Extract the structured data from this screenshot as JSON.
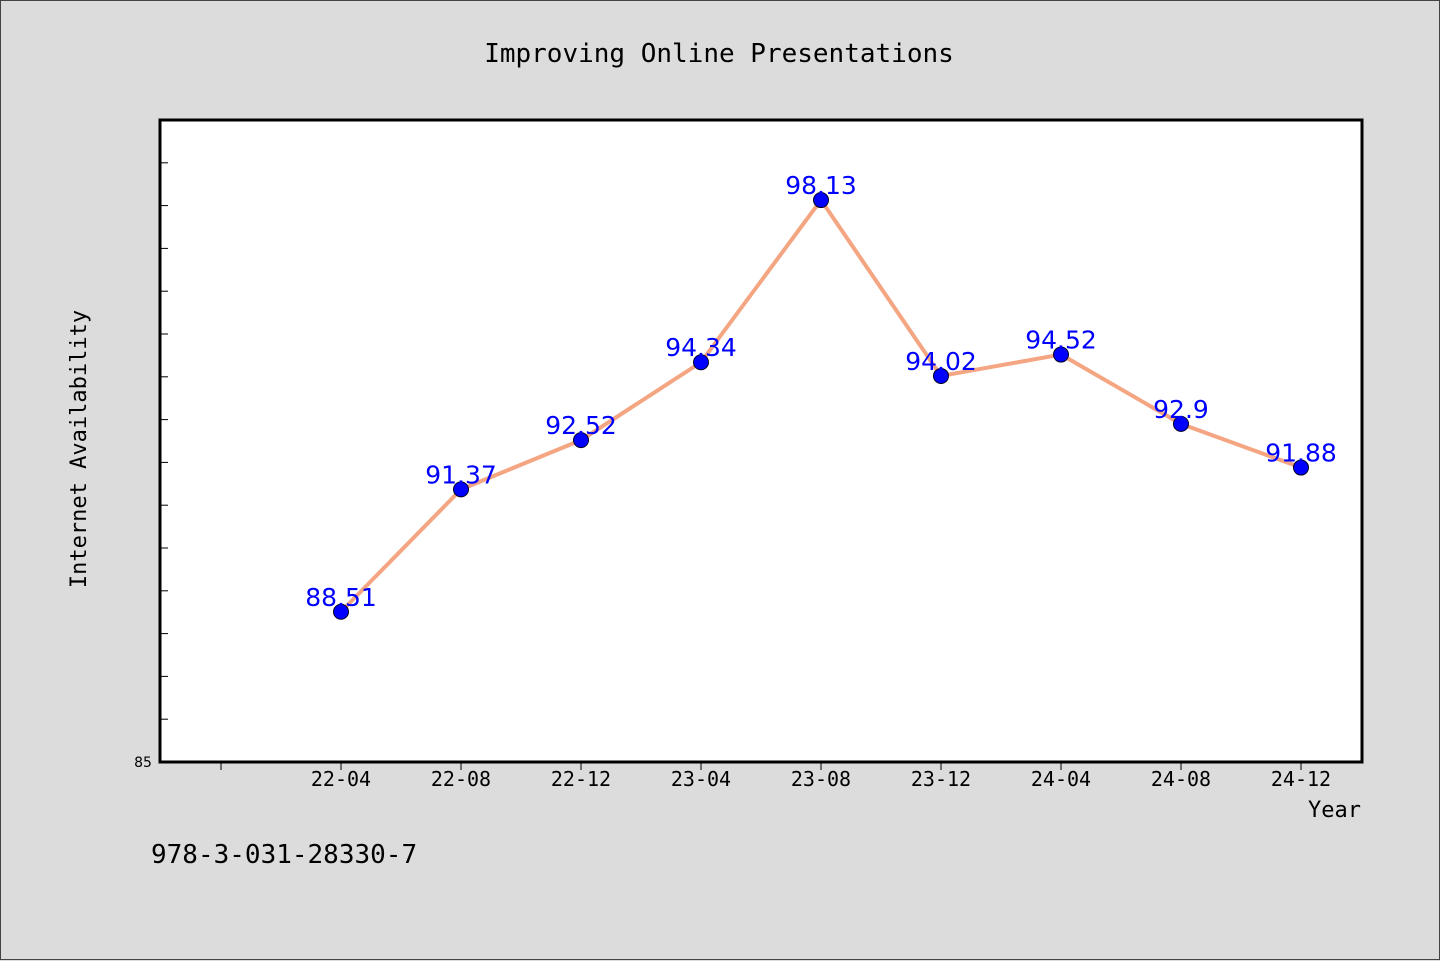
{
  "chart_data": {
    "type": "line",
    "title": "Improving Online Presentations",
    "xlabel": "Year",
    "ylabel": "Internet Availability",
    "categories": [
      "22-04",
      "22-08",
      "22-12",
      "23-04",
      "23-08",
      "23-12",
      "24-04",
      "24-08",
      "24-12"
    ],
    "series": [
      {
        "values": [
          88.51,
          91.37,
          92.52,
          94.34,
          98.13,
          94.02,
          94.52,
          92.9,
          91.88
        ],
        "labels": [
          "88.51",
          "91.37",
          "92.52",
          "94.34",
          "98.13",
          "94.02",
          "94.52",
          "92.9",
          "91.88"
        ],
        "line_color": "#f4a582",
        "marker_color": "#0000ff"
      }
    ],
    "ylim": [
      85,
      100
    ],
    "y_tick_labels": [
      "85"
    ],
    "grid": false,
    "plot_background": "#ffffff",
    "page_background": "#dcdcdc"
  },
  "footer": {
    "isbn": "978-3-031-28330-7"
  }
}
